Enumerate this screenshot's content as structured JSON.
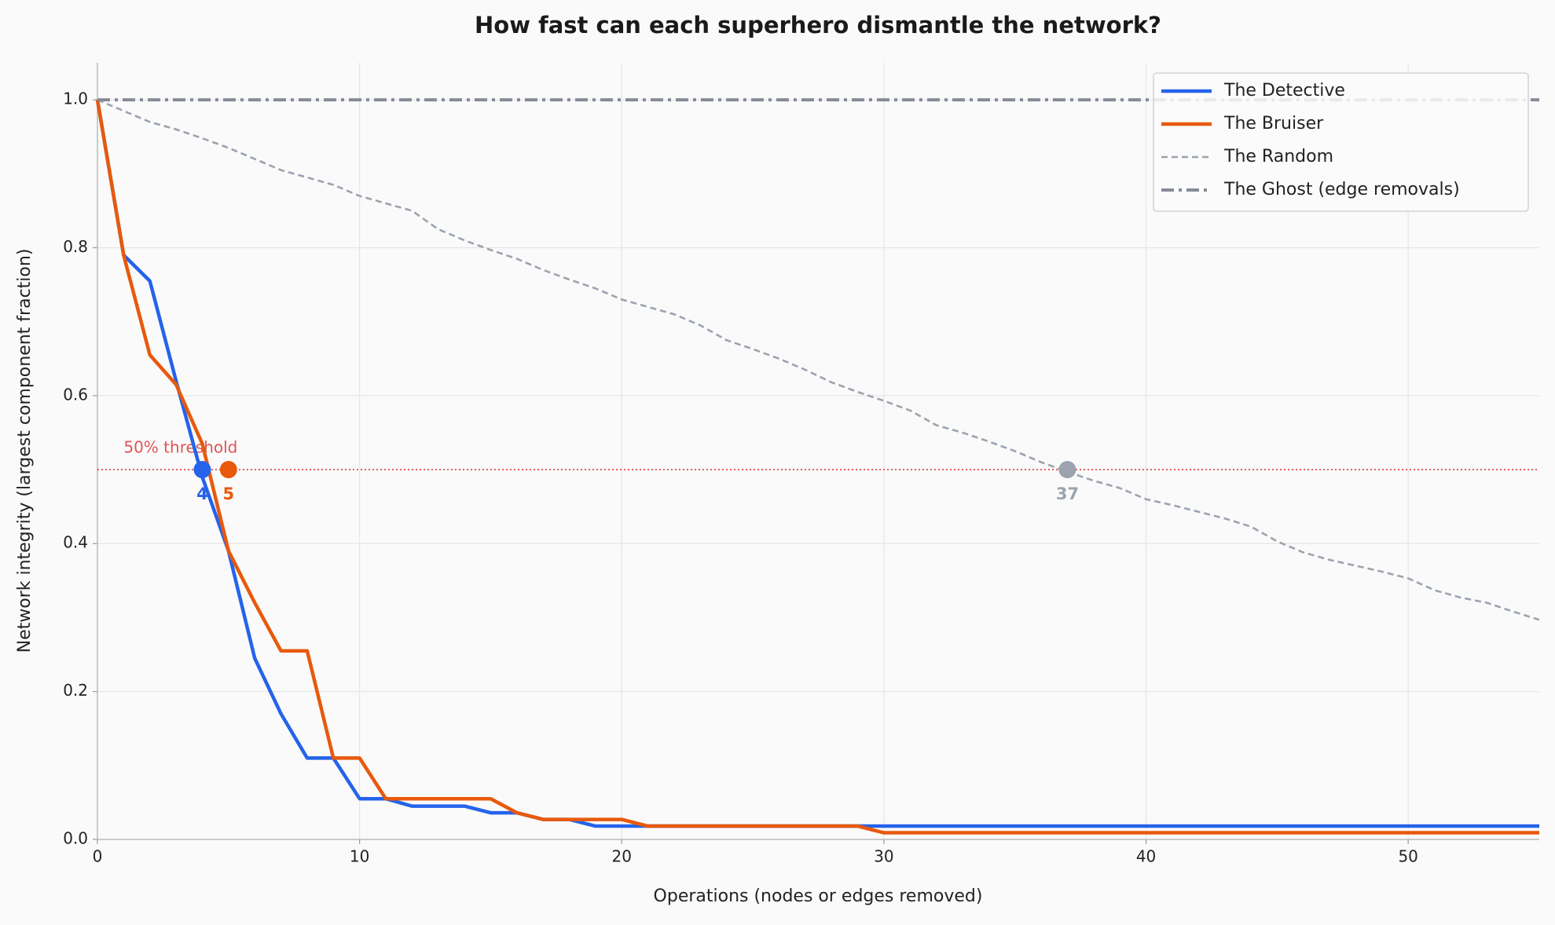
{
  "chart_data": {
    "type": "line",
    "title": "How fast can each superhero dismantle the network?",
    "xlabel": "Operations (nodes or edges removed)",
    "ylabel": "Network integrity (largest component fraction)",
    "x": [
      0,
      1,
      2,
      3,
      4,
      5,
      6,
      7,
      8,
      9,
      10,
      11,
      12,
      13,
      14,
      15,
      16,
      17,
      18,
      19,
      20,
      21,
      22,
      23,
      24,
      25,
      26,
      27,
      28,
      29,
      30,
      31,
      32,
      33,
      34,
      35,
      36,
      37,
      38,
      39,
      40,
      41,
      42,
      43,
      44,
      45,
      46,
      47,
      48,
      49,
      50,
      51,
      52,
      53,
      54,
      55
    ],
    "series": [
      {
        "name": "The Detective",
        "color": "#2563eb",
        "style": "solid",
        "values": [
          1.0,
          0.79,
          0.755,
          0.62,
          0.49,
          0.39,
          0.245,
          0.17,
          0.11,
          0.11,
          0.055,
          0.055,
          0.045,
          0.045,
          0.045,
          0.036,
          0.036,
          0.027,
          0.027,
          0.018,
          0.018,
          0.018,
          0.018,
          0.018,
          0.018,
          0.018,
          0.018,
          0.018,
          0.018,
          0.018,
          0.018,
          0.018,
          0.018,
          0.018,
          0.018,
          0.018,
          0.018,
          0.018,
          0.018,
          0.018,
          0.018,
          0.018,
          0.018,
          0.018,
          0.018,
          0.018,
          0.018,
          0.018,
          0.018,
          0.018,
          0.018,
          0.018,
          0.018,
          0.018,
          0.018,
          0.018
        ]
      },
      {
        "name": "The Bruiser",
        "color": "#e8590c",
        "style": "solid",
        "values": [
          1.0,
          0.79,
          0.655,
          0.615,
          0.535,
          0.39,
          0.32,
          0.255,
          0.255,
          0.11,
          0.11,
          0.055,
          0.055,
          0.055,
          0.055,
          0.055,
          0.036,
          0.027,
          0.027,
          0.027,
          0.027,
          0.018,
          0.018,
          0.018,
          0.018,
          0.018,
          0.018,
          0.018,
          0.018,
          0.018,
          0.009,
          0.009,
          0.009,
          0.009,
          0.009,
          0.009,
          0.009,
          0.009,
          0.009,
          0.009,
          0.009,
          0.009,
          0.009,
          0.009,
          0.009,
          0.009,
          0.009,
          0.009,
          0.009,
          0.009,
          0.009,
          0.009,
          0.009,
          0.009,
          0.009,
          0.009
        ]
      },
      {
        "name": "The Random",
        "color": "#9ca3af",
        "style": "dashed",
        "values": [
          1.0,
          0.985,
          0.97,
          0.96,
          0.948,
          0.935,
          0.92,
          0.905,
          0.895,
          0.885,
          0.87,
          0.86,
          0.85,
          0.825,
          0.81,
          0.797,
          0.785,
          0.77,
          0.757,
          0.745,
          0.73,
          0.72,
          0.71,
          0.695,
          0.675,
          0.663,
          0.65,
          0.635,
          0.618,
          0.605,
          0.593,
          0.58,
          0.56,
          0.55,
          0.538,
          0.525,
          0.51,
          0.497,
          0.485,
          0.475,
          0.46,
          0.452,
          0.443,
          0.434,
          0.423,
          0.403,
          0.388,
          0.378,
          0.37,
          0.362,
          0.353,
          0.337,
          0.327,
          0.32,
          0.308,
          0.297
        ]
      },
      {
        "name": "The Ghost (edge removals)",
        "color": "#868b99",
        "style": "dashdot",
        "values": [
          1,
          1,
          1,
          1,
          1,
          1,
          1,
          1,
          1,
          1,
          1,
          1,
          1,
          1,
          1,
          1,
          1,
          1,
          1,
          1,
          1,
          1,
          1,
          1,
          1,
          1,
          1,
          1,
          1,
          1,
          1,
          1,
          1,
          1,
          1,
          1,
          1,
          1,
          1,
          1,
          1,
          1,
          1,
          1,
          1,
          1,
          1,
          1,
          1,
          1,
          1,
          1,
          1,
          1,
          1,
          1
        ]
      }
    ],
    "threshold": {
      "value": 0.5,
      "label": "50% threshold",
      "color": "#e05555"
    },
    "markers": [
      {
        "x": 4,
        "y": 0.5,
        "color": "#2563eb"
      },
      {
        "x": 5,
        "y": 0.5,
        "color": "#e8590c"
      },
      {
        "x": 37,
        "y": 0.5,
        "color": "#9ca3af"
      }
    ],
    "xlim": [
      0,
      55
    ],
    "ylim": [
      0,
      1.05
    ],
    "xticks": [
      0,
      10,
      20,
      30,
      40,
      50
    ],
    "yticks": [
      {
        "value": 0,
        "label": "0.0"
      },
      {
        "value": 0.2,
        "label": "0.2"
      },
      {
        "value": 0.4,
        "label": "0.4"
      },
      {
        "value": 0.6,
        "label": "0.6"
      },
      {
        "value": 0.8,
        "label": "0.8"
      },
      {
        "value": 1.0,
        "label": "1.0"
      }
    ],
    "grid": true,
    "legend": "upper right"
  }
}
